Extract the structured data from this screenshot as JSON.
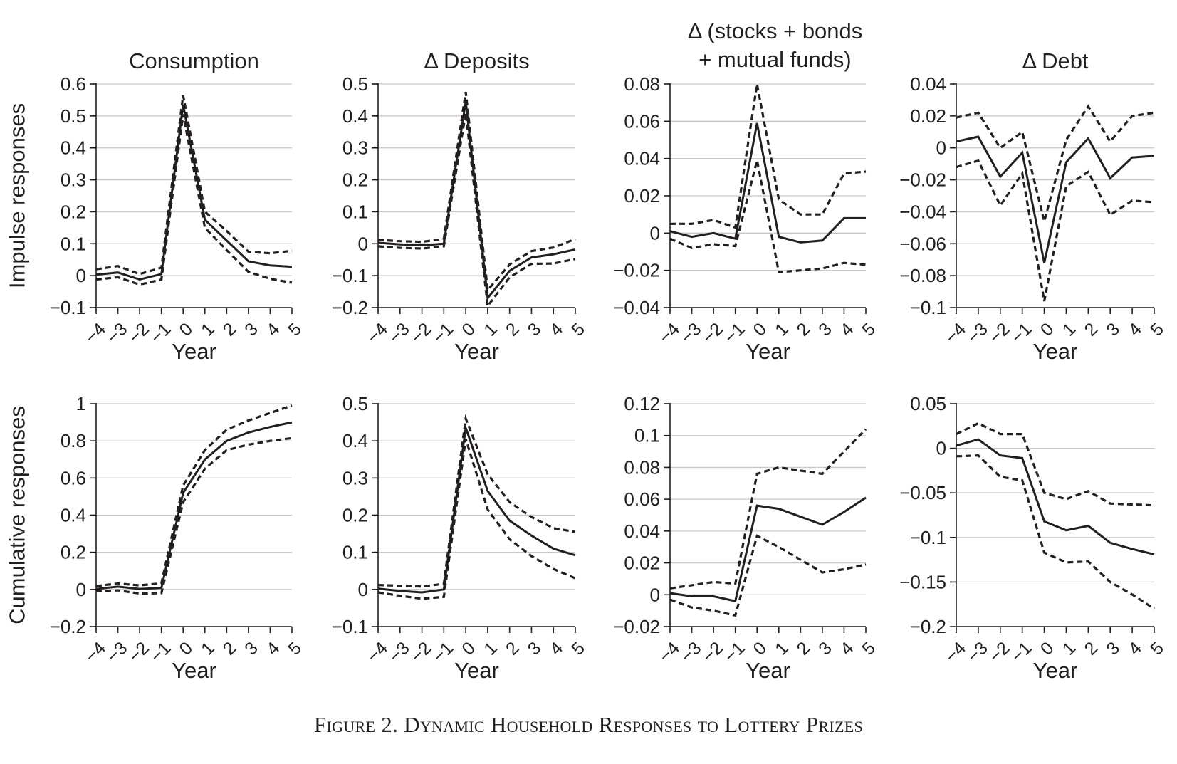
{
  "figure": {
    "caption": "Figure 2. Dynamic Household Responses to Lottery Prizes",
    "row_labels": [
      "Impulse responses",
      "Cumulative responses"
    ],
    "colors": {
      "ink": "#231f20",
      "grid": "#c8c8c8"
    }
  },
  "chart_data": [
    {
      "type": "line",
      "row": "Impulse responses",
      "title_lines": [
        "Consumption"
      ],
      "xlabel": "Year",
      "ylabel": "Impulse responses",
      "x": [
        -4,
        -3,
        -2,
        -1,
        0,
        1,
        2,
        3,
        4,
        5
      ],
      "ylim": [
        -0.1,
        0.6
      ],
      "yticks": [
        -0.1,
        0,
        0.1,
        0.2,
        0.3,
        0.4,
        0.5,
        0.6
      ],
      "yticklabels": [
        "−0.1",
        "0",
        "0.1",
        "0.2",
        "0.3",
        "0.4",
        "0.5",
        "0.6"
      ],
      "series": [
        {
          "name": "estimate",
          "style": "solid",
          "values": [
            0.003,
            0.01,
            -0.012,
            0.005,
            0.535,
            0.175,
            0.11,
            0.045,
            0.032,
            0.028
          ]
        },
        {
          "name": "upper bound",
          "style": "dashed",
          "values": [
            0.02,
            0.03,
            0.005,
            0.025,
            0.565,
            0.2,
            0.14,
            0.075,
            0.07,
            0.078
          ]
        },
        {
          "name": "lower bound",
          "style": "dashed",
          "values": [
            -0.012,
            -0.005,
            -0.028,
            -0.012,
            0.505,
            0.15,
            0.08,
            0.012,
            -0.01,
            -0.022
          ]
        }
      ]
    },
    {
      "type": "line",
      "row": "Impulse responses",
      "title_lines": [
        "Δ Deposits"
      ],
      "xlabel": "Year",
      "ylabel": "Impulse responses",
      "x": [
        -4,
        -3,
        -2,
        -1,
        0,
        1,
        2,
        3,
        4,
        5
      ],
      "ylim": [
        -0.2,
        0.5
      ],
      "yticks": [
        -0.2,
        -0.1,
        0,
        0.1,
        0.2,
        0.3,
        0.4,
        0.5
      ],
      "yticklabels": [
        "−0.2",
        "−0.1",
        "0",
        "0.1",
        "0.2",
        "0.3",
        "0.4",
        "0.5"
      ],
      "series": [
        {
          "name": "estimate",
          "style": "solid",
          "values": [
            0.003,
            -0.002,
            -0.005,
            0.0,
            0.445,
            -0.17,
            -0.085,
            -0.043,
            -0.033,
            -0.018
          ]
        },
        {
          "name": "upper bound",
          "style": "dashed",
          "values": [
            0.012,
            0.008,
            0.006,
            0.015,
            0.475,
            -0.145,
            -0.065,
            -0.023,
            -0.012,
            0.015
          ]
        },
        {
          "name": "lower bound",
          "style": "dashed",
          "values": [
            -0.008,
            -0.013,
            -0.015,
            -0.008,
            0.41,
            -0.195,
            -0.105,
            -0.063,
            -0.062,
            -0.048
          ]
        }
      ]
    },
    {
      "type": "line",
      "row": "Impulse responses",
      "title_lines": [
        "Δ (stocks + bonds",
        "+ mutual funds)"
      ],
      "xlabel": "Year",
      "ylabel": "Impulse responses",
      "x": [
        -4,
        -3,
        -2,
        -1,
        0,
        1,
        2,
        3,
        4,
        5
      ],
      "ylim": [
        -0.04,
        0.08
      ],
      "yticks": [
        -0.04,
        -0.02,
        0,
        0.02,
        0.04,
        0.06,
        0.08
      ],
      "yticklabels": [
        "−0.04",
        "−0.02",
        "0",
        "0.02",
        "0.04",
        "0.06",
        "0.08"
      ],
      "series": [
        {
          "name": "estimate",
          "style": "solid",
          "values": [
            0.001,
            -0.002,
            0.0,
            -0.003,
            0.059,
            -0.002,
            -0.005,
            -0.004,
            0.008,
            0.008
          ]
        },
        {
          "name": "upper bound",
          "style": "dashed",
          "values": [
            0.005,
            0.005,
            0.007,
            0.003,
            0.08,
            0.018,
            0.01,
            0.01,
            0.032,
            0.033
          ]
        },
        {
          "name": "lower bound",
          "style": "dashed",
          "values": [
            -0.003,
            -0.008,
            -0.006,
            -0.007,
            0.039,
            -0.021,
            -0.02,
            -0.019,
            -0.016,
            -0.017
          ]
        }
      ]
    },
    {
      "type": "line",
      "row": "Impulse responses",
      "title_lines": [
        "Δ Debt"
      ],
      "xlabel": "Year",
      "ylabel": "Impulse responses",
      "x": [
        -4,
        -3,
        -2,
        -1,
        0,
        1,
        2,
        3,
        4,
        5
      ],
      "ylim": [
        -0.1,
        0.04
      ],
      "yticks": [
        -0.1,
        -0.08,
        -0.06,
        -0.04,
        -0.02,
        0,
        0.02,
        0.04
      ],
      "yticklabels": [
        "−0.1",
        "−0.08",
        "−0.06",
        "−0.04",
        "−0.02",
        "0",
        "0.02",
        "0.04"
      ],
      "series": [
        {
          "name": "estimate",
          "style": "solid",
          "values": [
            0.004,
            0.007,
            -0.018,
            -0.003,
            -0.072,
            -0.009,
            0.006,
            -0.019,
            -0.006,
            -0.005
          ]
        },
        {
          "name": "upper bound",
          "style": "dashed",
          "values": [
            0.019,
            0.022,
            0.0,
            0.01,
            -0.046,
            0.005,
            0.026,
            0.004,
            0.02,
            0.022
          ]
        },
        {
          "name": "lower bound",
          "style": "dashed",
          "values": [
            -0.012,
            -0.008,
            -0.036,
            -0.016,
            -0.096,
            -0.024,
            -0.015,
            -0.042,
            -0.033,
            -0.034
          ]
        }
      ]
    },
    {
      "type": "line",
      "row": "Cumulative responses",
      "title_lines": [],
      "xlabel": "Year",
      "ylabel": "Cumulative responses",
      "x": [
        -4,
        -3,
        -2,
        -1,
        0,
        1,
        2,
        3,
        4,
        5
      ],
      "ylim": [
        -0.2,
        1.0
      ],
      "yticks": [
        -0.2,
        0,
        0.2,
        0.4,
        0.6,
        0.8,
        1.0
      ],
      "yticklabels": [
        "−0.2",
        "0",
        "0.2",
        "0.4",
        "0.6",
        "0.8",
        "1"
      ],
      "series": [
        {
          "name": "estimate",
          "style": "solid",
          "values": [
            0.003,
            0.015,
            0.003,
            0.008,
            0.52,
            0.7,
            0.8,
            0.845,
            0.875,
            0.9
          ]
        },
        {
          "name": "upper bound",
          "style": "dashed",
          "values": [
            0.018,
            0.032,
            0.022,
            0.033,
            0.56,
            0.75,
            0.86,
            0.91,
            0.95,
            0.99
          ]
        },
        {
          "name": "lower bound",
          "style": "dashed",
          "values": [
            -0.01,
            -0.005,
            -0.022,
            -0.02,
            0.47,
            0.65,
            0.75,
            0.78,
            0.8,
            0.815
          ]
        }
      ]
    },
    {
      "type": "line",
      "row": "Cumulative responses",
      "title_lines": [],
      "xlabel": "Year",
      "ylabel": "Cumulative responses",
      "x": [
        -4,
        -3,
        -2,
        -1,
        0,
        1,
        2,
        3,
        4,
        5
      ],
      "ylim": [
        -0.1,
        0.5
      ],
      "yticks": [
        -0.1,
        0,
        0.1,
        0.2,
        0.3,
        0.4,
        0.5
      ],
      "yticklabels": [
        "−0.1",
        "0",
        "0.1",
        "0.2",
        "0.3",
        "0.4",
        "0.5"
      ],
      "series": [
        {
          "name": "estimate",
          "style": "solid",
          "values": [
            0.002,
            -0.004,
            -0.008,
            0.0,
            0.435,
            0.265,
            0.185,
            0.145,
            0.11,
            0.092
          ]
        },
        {
          "name": "upper bound",
          "style": "dashed",
          "values": [
            0.012,
            0.01,
            0.008,
            0.015,
            0.46,
            0.31,
            0.235,
            0.195,
            0.165,
            0.155
          ]
        },
        {
          "name": "lower bound",
          "style": "dashed",
          "values": [
            -0.008,
            -0.017,
            -0.025,
            -0.02,
            0.405,
            0.215,
            0.135,
            0.09,
            0.055,
            0.03
          ]
        }
      ]
    },
    {
      "type": "line",
      "row": "Cumulative responses",
      "title_lines": [],
      "xlabel": "Year",
      "ylabel": "Cumulative responses",
      "x": [
        -4,
        -3,
        -2,
        -1,
        0,
        1,
        2,
        3,
        4,
        5
      ],
      "ylim": [
        -0.02,
        0.12
      ],
      "yticks": [
        -0.02,
        0,
        0.02,
        0.04,
        0.06,
        0.08,
        0.1,
        0.12
      ],
      "yticklabels": [
        "−0.02",
        "0",
        "0.02",
        "0.04",
        "0.06",
        "0.08",
        "0.1",
        "0.12"
      ],
      "series": [
        {
          "name": "estimate",
          "style": "solid",
          "values": [
            0.001,
            -0.001,
            -0.001,
            -0.004,
            0.056,
            0.054,
            0.049,
            0.044,
            0.052,
            0.061
          ]
        },
        {
          "name": "upper bound",
          "style": "dashed",
          "values": [
            0.004,
            0.006,
            0.008,
            0.007,
            0.076,
            0.08,
            0.078,
            0.076,
            0.09,
            0.104
          ]
        },
        {
          "name": "lower bound",
          "style": "dashed",
          "values": [
            -0.003,
            -0.008,
            -0.01,
            -0.013,
            0.037,
            0.03,
            0.022,
            0.014,
            0.016,
            0.019
          ]
        }
      ]
    },
    {
      "type": "line",
      "row": "Cumulative responses",
      "title_lines": [],
      "xlabel": "Year",
      "ylabel": "Cumulative responses",
      "x": [
        -4,
        -3,
        -2,
        -1,
        0,
        1,
        2,
        3,
        4,
        5
      ],
      "ylim": [
        -0.2,
        0.05
      ],
      "yticks": [
        -0.2,
        -0.15,
        -0.1,
        -0.05,
        0,
        0.05
      ],
      "yticklabels": [
        "−0.2",
        "−0.15",
        "−0.1",
        "−0.05",
        "0",
        "0.05"
      ],
      "series": [
        {
          "name": "estimate",
          "style": "solid",
          "values": [
            0.003,
            0.01,
            -0.008,
            -0.011,
            -0.082,
            -0.092,
            -0.087,
            -0.106,
            -0.113,
            -0.119
          ]
        },
        {
          "name": "upper bound",
          "style": "dashed",
          "values": [
            0.016,
            0.028,
            0.016,
            0.016,
            -0.05,
            -0.057,
            -0.048,
            -0.062,
            -0.063,
            -0.064
          ]
        },
        {
          "name": "lower bound",
          "style": "dashed",
          "values": [
            -0.009,
            -0.008,
            -0.032,
            -0.036,
            -0.117,
            -0.128,
            -0.127,
            -0.15,
            -0.164,
            -0.18
          ]
        }
      ]
    }
  ]
}
